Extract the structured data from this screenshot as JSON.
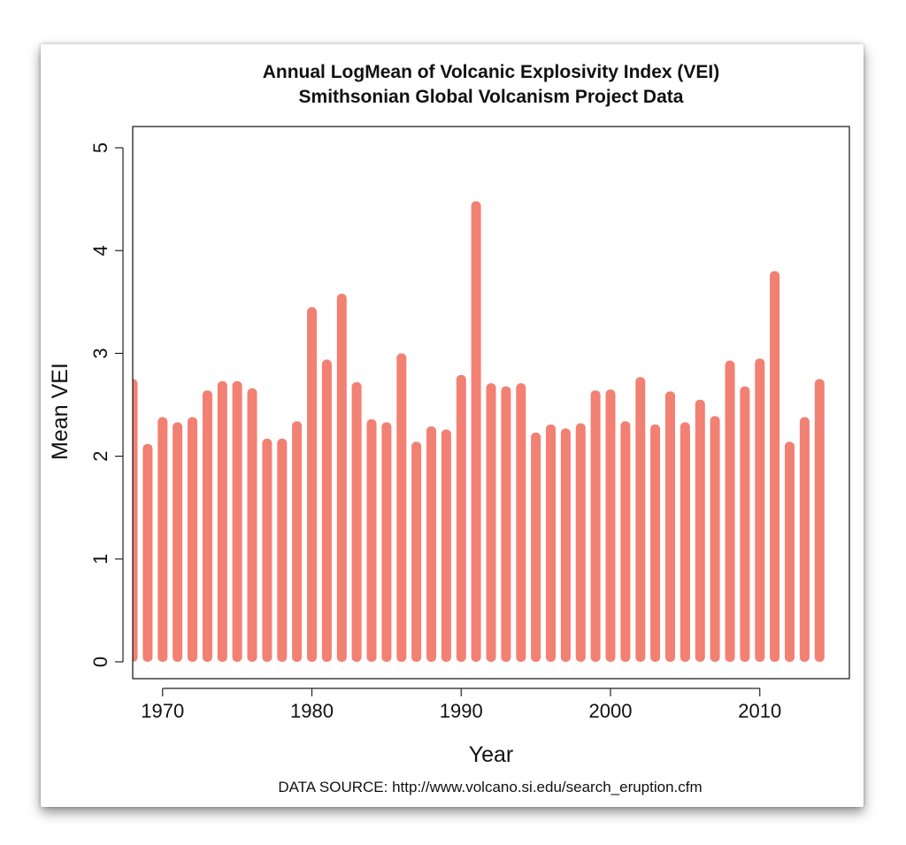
{
  "chart_data": {
    "type": "bar",
    "title": "Annual LogMean of Volcanic Explosivity Index (VEI)",
    "subtitle": "Smithsonian Global Volcanism Project Data",
    "xlabel": "Year",
    "ylabel": "Mean VEI",
    "source_note": "DATA SOURCE: http://www.volcano.si.edu/search_eruption.cfm",
    "xlim": [
      1968,
      2016
    ],
    "ylim": [
      0,
      5
    ],
    "x_ticks": [
      1970,
      1980,
      1990,
      2000,
      2010
    ],
    "y_ticks": [
      0,
      1,
      2,
      3,
      4,
      5
    ],
    "bar_color": "#f28073",
    "grid": false,
    "categories": [
      1968,
      1969,
      1970,
      1971,
      1972,
      1973,
      1974,
      1975,
      1976,
      1977,
      1978,
      1979,
      1980,
      1981,
      1982,
      1983,
      1984,
      1985,
      1986,
      1987,
      1988,
      1989,
      1990,
      1991,
      1992,
      1993,
      1994,
      1995,
      1996,
      1997,
      1998,
      1999,
      2000,
      2001,
      2002,
      2003,
      2004,
      2005,
      2006,
      2007,
      2008,
      2009,
      2010,
      2011,
      2012,
      2013,
      2014
    ],
    "values": [
      2.75,
      2.12,
      2.38,
      2.33,
      2.38,
      2.64,
      2.73,
      2.73,
      2.66,
      2.17,
      2.17,
      2.34,
      3.45,
      2.94,
      3.58,
      2.72,
      2.36,
      2.33,
      3.0,
      2.14,
      2.29,
      2.26,
      2.79,
      4.48,
      2.71,
      2.68,
      2.71,
      2.23,
      2.31,
      2.27,
      2.32,
      2.64,
      2.65,
      2.34,
      2.77,
      2.31,
      2.63,
      2.33,
      2.55,
      2.39,
      2.93,
      2.68,
      2.95,
      3.8,
      2.14,
      2.38,
      2.75
    ]
  }
}
